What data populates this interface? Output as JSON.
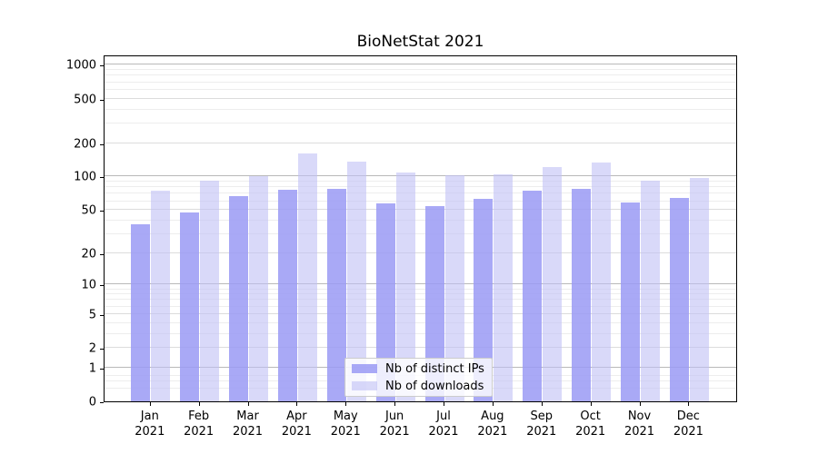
{
  "title": "BioNetStat 2021",
  "legend": {
    "items": [
      {
        "label": "Nb of distinct IPs",
        "color": "rgba(154,154,245,0.85)"
      },
      {
        "label": "Nb of downloads",
        "color": "rgba(192,192,245,0.60)"
      }
    ]
  },
  "axes": {
    "months": [
      "Jan",
      "Feb",
      "Mar",
      "Apr",
      "May",
      "Jun",
      "Jul",
      "Aug",
      "Sep",
      "Oct",
      "Nov",
      "Dec"
    ],
    "year_label": "2021",
    "yticks": [
      0,
      1,
      2,
      5,
      10,
      20,
      50,
      100,
      200,
      500,
      1000
    ]
  },
  "chart_data": {
    "type": "bar",
    "title": "BioNetStat 2021",
    "categories": [
      "Jan 2021",
      "Feb 2021",
      "Mar 2021",
      "Apr 2021",
      "May 2021",
      "Jun 2021",
      "Jul 2021",
      "Aug 2021",
      "Sep 2021",
      "Oct 2021",
      "Nov 2021",
      "Dec 2021"
    ],
    "series": [
      {
        "name": "Nb of distinct IPs",
        "color": "#a9a9f5",
        "values": [
          37,
          47,
          67,
          76,
          78,
          57,
          54,
          63,
          75,
          77,
          58,
          64
        ]
      },
      {
        "name": "Nb of downloads",
        "color": "#d9d9f9",
        "values": [
          75,
          92,
          100,
          160,
          137,
          108,
          102,
          105,
          121,
          133,
          91,
          97
        ]
      }
    ],
    "yscale": "log1p",
    "yticks": [
      0,
      1,
      2,
      5,
      10,
      20,
      50,
      100,
      200,
      500,
      1000
    ],
    "ytick_gridlines_major": [
      1,
      10,
      100,
      1000
    ],
    "ytick_gridlines_mid": [
      2,
      5,
      20,
      50,
      200,
      500
    ],
    "ytick_gridlines_minor": [
      0.3,
      0.5,
      0.7,
      3,
      4,
      6,
      7,
      8,
      9,
      30,
      40,
      60,
      70,
      80,
      90,
      300,
      400,
      600,
      700,
      800,
      900
    ],
    "ylim": [
      0,
      1250
    ],
    "xlabel": "",
    "ylabel": "",
    "grid": true,
    "legend_position": "lower center"
  }
}
